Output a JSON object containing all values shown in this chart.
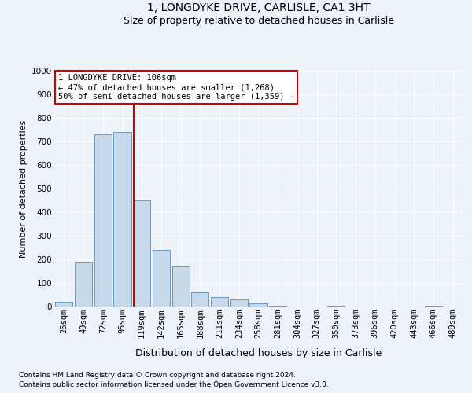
{
  "title1": "1, LONGDYKE DRIVE, CARLISLE, CA1 3HT",
  "title2": "Size of property relative to detached houses in Carlisle",
  "xlabel": "Distribution of detached houses by size in Carlisle",
  "ylabel": "Number of detached properties",
  "categories": [
    "26sqm",
    "49sqm",
    "72sqm",
    "95sqm",
    "119sqm",
    "142sqm",
    "165sqm",
    "188sqm",
    "211sqm",
    "234sqm",
    "258sqm",
    "281sqm",
    "304sqm",
    "327sqm",
    "350sqm",
    "373sqm",
    "396sqm",
    "420sqm",
    "443sqm",
    "466sqm",
    "489sqm"
  ],
  "values": [
    20,
    190,
    730,
    740,
    450,
    240,
    170,
    60,
    40,
    30,
    15,
    5,
    0,
    0,
    5,
    0,
    0,
    0,
    0,
    5,
    0
  ],
  "bar_color": "#c6d9ea",
  "bar_edge_color": "#5a8db8",
  "red_line_x": 3.57,
  "annotation_line1": "1 LONGDYKE DRIVE: 106sqm",
  "annotation_line2": "← 47% of detached houses are smaller (1,268)",
  "annotation_line3": "50% of semi-detached houses are larger (1,359) →",
  "annotation_box_facecolor": "#ffffff",
  "annotation_box_edgecolor": "#cc0000",
  "footer1": "Contains HM Land Registry data © Crown copyright and database right 2024.",
  "footer2": "Contains public sector information licensed under the Open Government Licence v3.0.",
  "ylim": [
    0,
    1000
  ],
  "yticks": [
    0,
    100,
    200,
    300,
    400,
    500,
    600,
    700,
    800,
    900,
    1000
  ],
  "bg_color": "#edf1f8",
  "grid_color": "#ffffff",
  "title1_fontsize": 10,
  "title2_fontsize": 9,
  "ylabel_fontsize": 8,
  "xlabel_fontsize": 9,
  "tick_fontsize": 7.5,
  "footer_fontsize": 6.5,
  "annotation_fontsize": 7.5
}
